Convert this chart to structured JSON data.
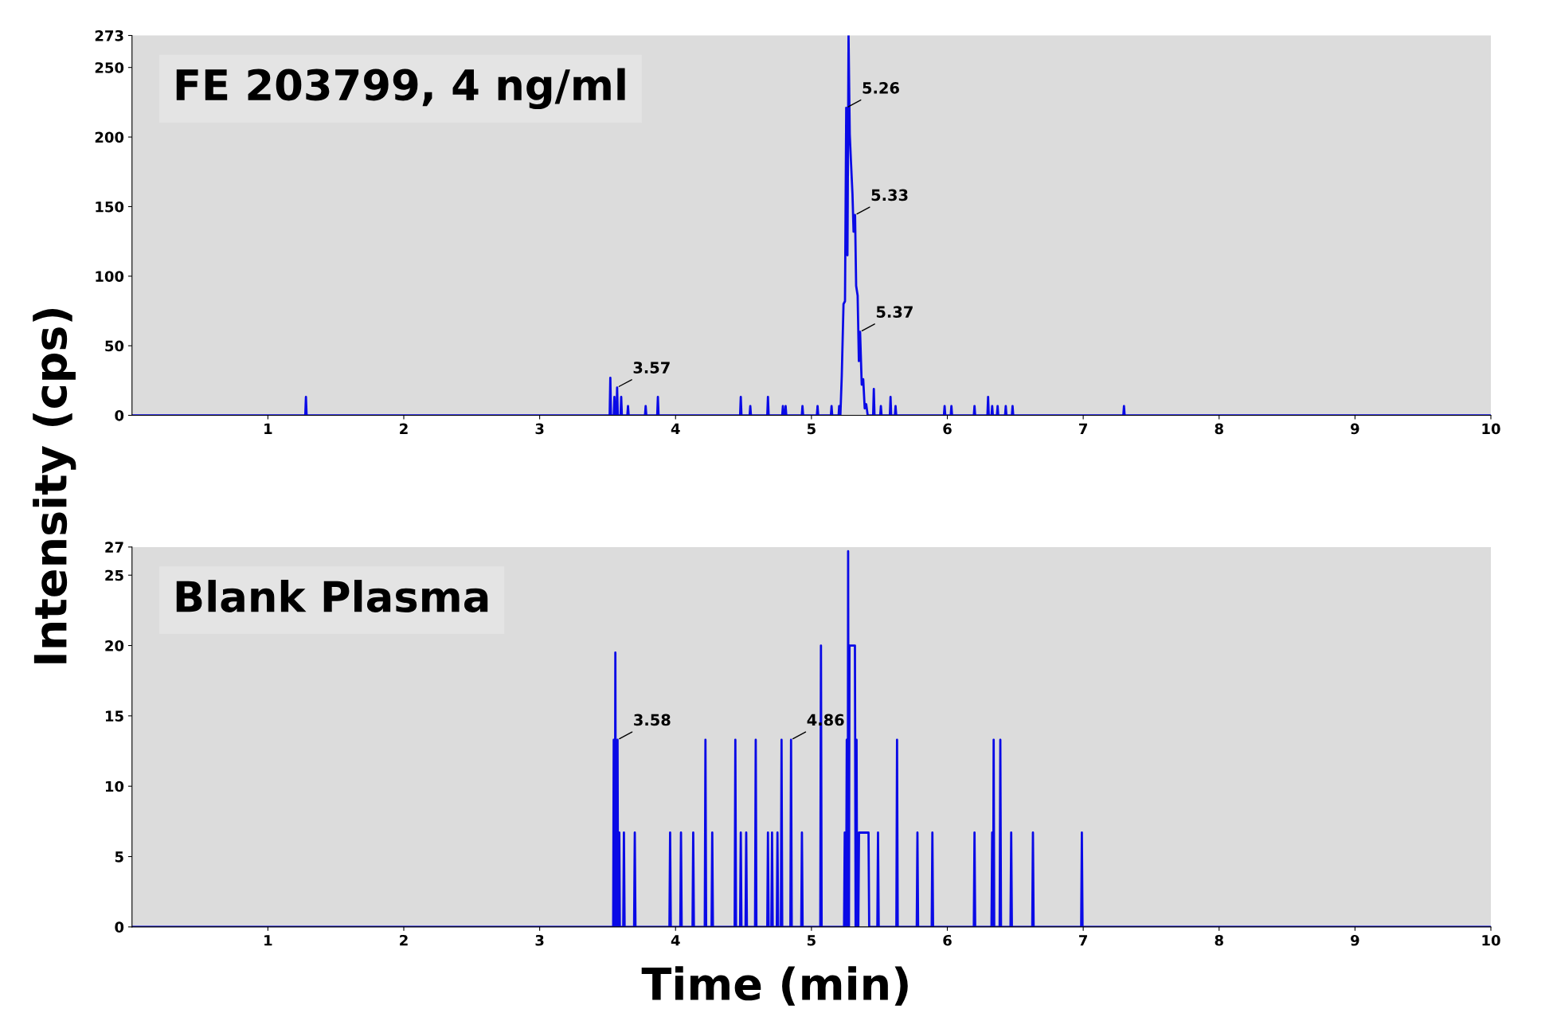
{
  "chart_data": [
    {
      "type": "line",
      "title": "FE 203799, 4 ng/ml",
      "ylabel": "Intensity (cps)",
      "xlim": [
        0,
        10
      ],
      "xticks": [
        1,
        2,
        3,
        4,
        5,
        6,
        7,
        8,
        9,
        10
      ],
      "ylim": [
        0,
        273
      ],
      "yticks": [
        0,
        50,
        100,
        150,
        200,
        250,
        273
      ],
      "grid": false,
      "marker": "none",
      "line_style": "solid",
      "series": [
        {
          "color": "#0a0ae6",
          "x": [
            0,
            1.275,
            1.28,
            1.285,
            3.515,
            3.52,
            3.525,
            3.545,
            3.55,
            3.555,
            3.565,
            3.57,
            3.575,
            3.595,
            3.6,
            3.605,
            3.645,
            3.65,
            3.655,
            3.775,
            3.78,
            3.785,
            3.865,
            3.87,
            3.875,
            4.475,
            4.48,
            4.485,
            4.545,
            4.55,
            4.555,
            4.675,
            4.68,
            4.685,
            4.785,
            4.79,
            4.795,
            4.805,
            4.81,
            4.815,
            4.929,
            4.934,
            4.939,
            5.04,
            5.045,
            5.05,
            5.143,
            5.148,
            5.153,
            5.2,
            5.204,
            5.208,
            5.213,
            5.223,
            5.236,
            5.247,
            5.256,
            5.265,
            5.273,
            5.282,
            5.291,
            5.302,
            5.31,
            5.321,
            5.329,
            5.34,
            5.349,
            5.358,
            5.37,
            5.381,
            5.392,
            5.403,
            5.414,
            5.454,
            5.459,
            5.464,
            5.506,
            5.511,
            5.516,
            5.577,
            5.582,
            5.587,
            5.614,
            5.619,
            5.624,
            5.975,
            5.98,
            5.985,
            6.025,
            6.03,
            6.035,
            6.195,
            6.2,
            6.205,
            6.295,
            6.3,
            6.305,
            6.325,
            6.33,
            6.335,
            6.365,
            6.37,
            6.375,
            6.425,
            6.43,
            6.435,
            6.475,
            6.48,
            6.485,
            7.295,
            7.3,
            7.305,
            10
          ],
          "values": [
            0,
            0,
            13.3,
            0,
            0,
            27,
            0,
            0,
            13.3,
            0,
            0,
            20,
            0,
            0,
            13.3,
            0,
            0,
            6.7,
            0,
            0,
            6.7,
            0,
            0,
            13.3,
            0,
            0,
            13.3,
            0,
            0,
            6.7,
            0,
            0,
            13.3,
            0,
            0,
            6.7,
            0,
            0,
            6.7,
            0,
            0,
            6.7,
            0,
            0,
            6.7,
            0,
            0,
            6.7,
            0,
            0,
            6.7,
            0,
            0,
            28,
            80,
            82,
            221,
            115,
            273,
            202,
            182,
            159,
            132,
            144,
            93,
            86,
            39,
            60,
            22,
            26,
            5,
            8,
            0,
            0,
            19,
            0,
            0,
            6.7,
            0,
            0,
            13.3,
            0,
            0,
            6.7,
            0,
            0,
            6.7,
            0,
            0,
            6.7,
            0,
            0,
            6.7,
            0,
            0,
            13.3,
            0,
            0,
            6.7,
            0,
            0,
            6.7,
            0,
            0,
            6.7,
            0,
            0,
            6.7,
            0,
            0,
            6.7,
            0,
            0
          ]
        }
      ],
      "annotations": [
        {
          "text": "5.26",
          "x": 5.256,
          "y": 221
        },
        {
          "text": "5.33",
          "x": 5.321,
          "y": 144
        },
        {
          "text": "5.37",
          "x": 5.358,
          "y": 60
        },
        {
          "text": "3.57",
          "x": 3.57,
          "y": 20
        }
      ]
    },
    {
      "type": "line",
      "title": "Blank Plasma",
      "xlabel": "Time (min)",
      "xlim": [
        0,
        10
      ],
      "xticks": [
        1,
        2,
        3,
        4,
        5,
        6,
        7,
        8,
        9,
        10
      ],
      "ylim": [
        0,
        27
      ],
      "yticks": [
        0,
        5,
        10,
        15,
        20,
        25,
        27
      ],
      "grid": false,
      "marker": "none",
      "line_style": "solid",
      "series": [
        {
          "color": "#0a0ae6",
          "x": [
            0,
            3.541,
            3.545,
            3.549,
            3.553,
            3.557,
            3.561,
            3.569,
            3.573,
            3.577,
            3.582,
            3.586,
            3.59,
            3.615,
            3.62,
            3.625,
            3.695,
            3.7,
            3.705,
            3.955,
            3.96,
            3.965,
            4.035,
            4.04,
            4.045,
            4.125,
            4.13,
            4.135,
            4.215,
            4.22,
            4.225,
            4.265,
            4.27,
            4.275,
            4.435,
            4.44,
            4.445,
            4.475,
            4.48,
            4.485,
            4.515,
            4.52,
            4.525,
            4.585,
            4.59,
            4.595,
            4.675,
            4.68,
            4.685,
            4.705,
            4.71,
            4.715,
            4.745,
            4.75,
            4.755,
            4.775,
            4.78,
            4.785,
            4.845,
            4.85,
            4.855,
            4.925,
            4.93,
            4.935,
            5.065,
            5.07,
            5.075,
            5.24,
            5.245,
            5.25,
            5.255,
            5.26,
            5.265,
            5.267,
            5.27,
            5.274,
            5.276,
            5.28,
            5.29,
            5.3,
            5.31,
            5.32,
            5.325,
            5.328,
            5.332,
            5.336,
            5.345,
            5.35,
            5.42,
            5.425,
            5.485,
            5.49,
            5.495,
            5.625,
            5.63,
            5.635,
            5.775,
            5.78,
            5.785,
            5.885,
            5.89,
            5.895,
            6.195,
            6.2,
            6.205,
            6.325,
            6.33,
            6.335,
            6.337,
            6.341,
            6.345,
            6.385,
            6.39,
            6.395,
            6.465,
            6.47,
            6.475,
            6.625,
            6.63,
            6.635,
            6.985,
            6.99,
            6.995,
            10
          ],
          "values": [
            0,
            0,
            13.3,
            0,
            0,
            19.5,
            0,
            0,
            13.3,
            0,
            0,
            6.7,
            0,
            0,
            6.7,
            0,
            0,
            6.7,
            0,
            0,
            6.7,
            0,
            0,
            6.7,
            0,
            0,
            6.7,
            0,
            0,
            13.3,
            0,
            0,
            6.7,
            0,
            0,
            13.3,
            0,
            0,
            6.7,
            0,
            0,
            6.7,
            0,
            0,
            13.3,
            0,
            0,
            6.7,
            0,
            0,
            6.7,
            0,
            0,
            6.7,
            0,
            0,
            13.3,
            0,
            0,
            13.3,
            0,
            0,
            6.7,
            0,
            0,
            20,
            0,
            0,
            6.7,
            0,
            0,
            13.3,
            0,
            0,
            26.7,
            0,
            0,
            20,
            20,
            20,
            20,
            20,
            0,
            0,
            13.3,
            0,
            0,
            6.7,
            6.7,
            0,
            0,
            6.7,
            0,
            0,
            13.3,
            0,
            0,
            6.7,
            0,
            0,
            6.7,
            0,
            0,
            6.7,
            0,
            0,
            6.7,
            0,
            0,
            13.3,
            0,
            0,
            13.3,
            0,
            0,
            6.7,
            0,
            0,
            6.7,
            0,
            0,
            6.7,
            0,
            0
          ]
        }
      ],
      "annotations": [
        {
          "text": "3.58",
          "x": 3.573,
          "y": 13.3
        },
        {
          "text": "4.86",
          "x": 4.85,
          "y": 13.3
        }
      ]
    }
  ]
}
